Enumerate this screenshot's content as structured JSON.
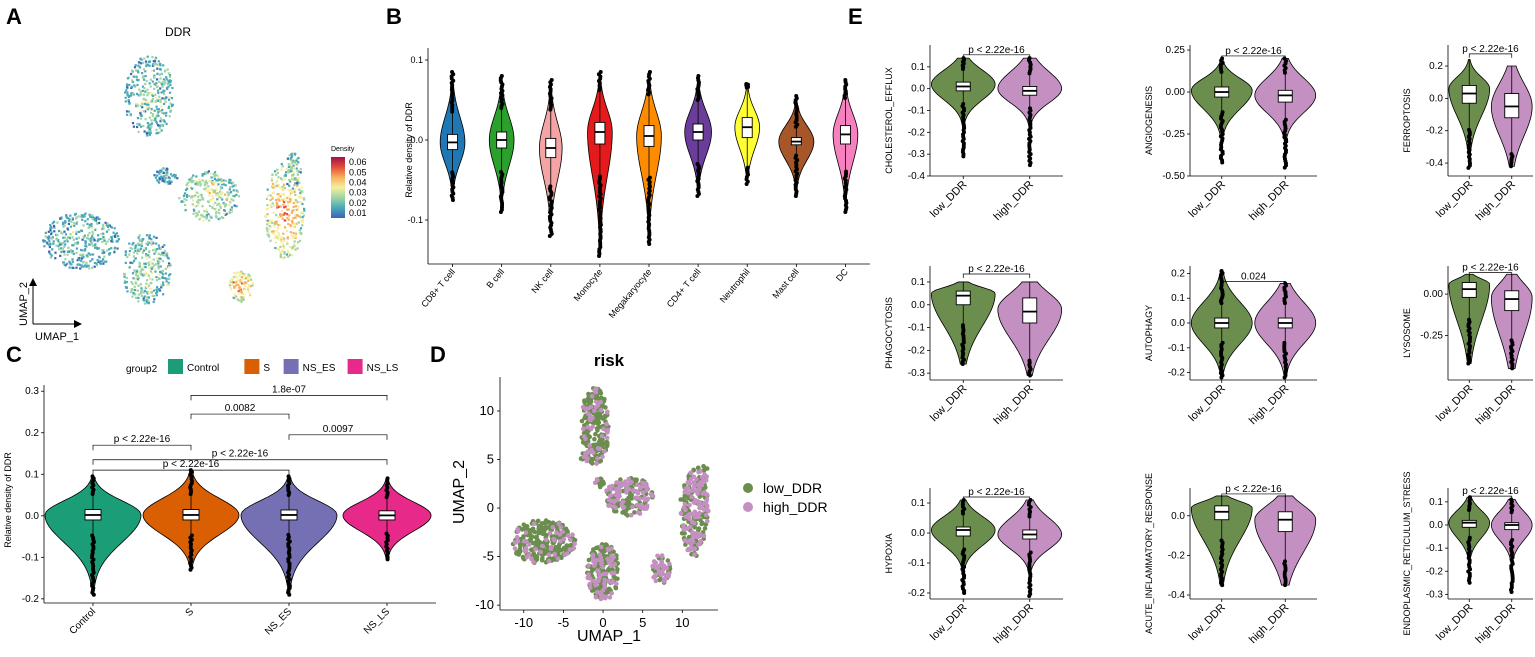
{
  "figure": {
    "panels": [
      {
        "letter": "A"
      },
      {
        "letter": "B"
      },
      {
        "letter": "C"
      },
      {
        "letter": "D"
      },
      {
        "letter": "E"
      }
    ]
  },
  "colors": {
    "density_scale": [
      "#3B63B4",
      "#4AA8B8",
      "#9FD4A4",
      "#F4EE9D",
      "#F8B05C",
      "#E44D3A",
      "#A0124B"
    ],
    "low_DDR": "#6B8E4E",
    "high_DDR": "#C490C2",
    "group_colors": [
      "#1B9E77",
      "#D95F02",
      "#7570B3",
      "#E7298A"
    ],
    "celltype_colors": [
      "#1F77B4",
      "#2CA02C",
      "#F4A4A4",
      "#E41A1C",
      "#FF8C00",
      "#6A3D9A",
      "#FFFF33",
      "#A65628",
      "#F781BF"
    ]
  },
  "chart_data": [
    {
      "id": "A",
      "type": "scatter",
      "title": "DDR",
      "xlabel": "UMAP_1",
      "ylabel": "UMAP_2",
      "legend_title": "Density",
      "legend_ticks": [
        "0.06",
        "0.05",
        "0.04",
        "0.03",
        "0.02",
        "0.01"
      ],
      "legend_range": [
        0.005,
        0.065
      ]
    },
    {
      "id": "B",
      "type": "violin",
      "ylabel": "Relative density of DDR",
      "ylim": [
        -0.155,
        0.115
      ],
      "yticks": [
        0.1,
        0.0,
        -0.1
      ],
      "ytick_labels": [
        "0.1",
        "0.0",
        "-0.1"
      ],
      "categories": [
        "CD8+ T cell",
        "B cell",
        "NK cell",
        "Monocyte",
        "Megakaryocyte",
        "CD4+ T cell",
        "Neutrophil",
        "Mast cell",
        "DC"
      ],
      "series": [
        {
          "name": "CD8+ T cell",
          "median": -0.003,
          "q1": -0.012,
          "q3": 0.007,
          "min": -0.075,
          "max": 0.085,
          "width": 0.6
        },
        {
          "name": "B cell",
          "median": 0.0,
          "q1": -0.01,
          "q3": 0.01,
          "min": -0.09,
          "max": 0.08,
          "width": 0.6
        },
        {
          "name": "NK cell",
          "median": -0.01,
          "q1": -0.022,
          "q3": 0.002,
          "min": -0.12,
          "max": 0.075,
          "width": 0.55
        },
        {
          "name": "Monocyte",
          "median": 0.01,
          "q1": -0.005,
          "q3": 0.022,
          "min": -0.145,
          "max": 0.085,
          "width": 0.6
        },
        {
          "name": "Megakaryocyte",
          "median": 0.005,
          "q1": -0.008,
          "q3": 0.018,
          "min": -0.13,
          "max": 0.085,
          "width": 0.6
        },
        {
          "name": "CD4+ T cell",
          "median": 0.01,
          "q1": 0.0,
          "q3": 0.02,
          "min": -0.07,
          "max": 0.08,
          "width": 0.65
        },
        {
          "name": "Neutrophil",
          "median": 0.016,
          "q1": 0.003,
          "q3": 0.028,
          "min": -0.055,
          "max": 0.07,
          "width": 0.6
        },
        {
          "name": "Mast cell",
          "median": -0.002,
          "q1": -0.006,
          "q3": 0.003,
          "min": -0.07,
          "max": 0.055,
          "width": 0.85
        },
        {
          "name": "DC",
          "median": 0.007,
          "q1": -0.005,
          "q3": 0.018,
          "min": -0.09,
          "max": 0.075,
          "width": 0.6
        }
      ]
    },
    {
      "id": "C",
      "type": "violin",
      "ylabel": "Relative density of DDR",
      "legend_title": "group2",
      "ylim": [
        -0.21,
        0.315
      ],
      "yticks": [
        0.3,
        0.2,
        0.1,
        0.0,
        -0.1,
        -0.2
      ],
      "ytick_labels": [
        "0.3",
        "0.2",
        "0.1",
        "0.0",
        "-0.1",
        "-0.2"
      ],
      "categories": [
        "Control",
        "S",
        "NS_ES",
        "NS_LS"
      ],
      "series": [
        {
          "name": "Control",
          "median": 0.002,
          "q1": -0.01,
          "q3": 0.015,
          "min": -0.19,
          "max": 0.095,
          "width": 0.98
        },
        {
          "name": "S",
          "median": 0.002,
          "q1": -0.01,
          "q3": 0.015,
          "min": -0.13,
          "max": 0.11,
          "width": 0.98
        },
        {
          "name": "NS_ES",
          "median": 0.002,
          "q1": -0.01,
          "q3": 0.014,
          "min": -0.19,
          "max": 0.095,
          "width": 0.98
        },
        {
          "name": "NS_LS",
          "median": 0.001,
          "q1": -0.01,
          "q3": 0.012,
          "min": -0.105,
          "max": 0.09,
          "width": 0.9
        }
      ],
      "comparisons": [
        {
          "from": "S",
          "to": "NS_LS",
          "y": 0.29,
          "label": "1.8e-07"
        },
        {
          "from": "S",
          "to": "NS_ES",
          "y": 0.245,
          "label": "0.0082"
        },
        {
          "from": "NS_ES",
          "to": "NS_LS",
          "y": 0.195,
          "label": "0.0097"
        },
        {
          "from": "Control",
          "to": "S",
          "y": 0.17,
          "label": "p < 2.22e-16"
        },
        {
          "from": "Control",
          "to": "NS_LS",
          "y": 0.135,
          "label": "p < 2.22e-16"
        },
        {
          "from": "Control",
          "to": "NS_ES",
          "y": 0.11,
          "label": "p < 2.22e-16"
        }
      ]
    },
    {
      "id": "D",
      "type": "scatter",
      "title": "risk",
      "xlabel": "UMAP_1",
      "ylabel": "UMAP_2",
      "xlim": [
        -13,
        14.5
      ],
      "ylim": [
        -10.5,
        13.5
      ],
      "xticks": [
        -10,
        -5,
        0,
        5,
        10
      ],
      "xtick_labels": [
        "-10",
        "-5",
        "0",
        "5",
        "10"
      ],
      "yticks": [
        10,
        5,
        0,
        -5,
        -10
      ],
      "ytick_labels": [
        "10",
        "5",
        "0",
        "-5",
        "-10"
      ],
      "legend": [
        "low_DDR",
        "high_DDR"
      ]
    },
    {
      "id": "E",
      "type": "violin",
      "categories": [
        "low_DDR",
        "high_DDR"
      ],
      "subplots": [
        {
          "name": "CHOLESTEROL_EFFLUX",
          "ylim": [
            -0.4,
            0.2
          ],
          "yticks": [
            0.1,
            0.0,
            -0.1,
            -0.2,
            -0.3,
            -0.4
          ],
          "ytick_labels": [
            "0.1",
            "0.0",
            "-0.1",
            "-0.2",
            "-0.3",
            "-0.4"
          ],
          "p": "p < 2.22e-16",
          "p_y": 0.155,
          "series": [
            {
              "median": 0.01,
              "q1": -0.01,
              "q3": 0.03,
              "min": -0.31,
              "max": 0.14,
              "dens": 0.02,
              "upper": 0.12,
              "lower": -0.09
            },
            {
              "median": -0.01,
              "q1": -0.03,
              "q3": 0.01,
              "min": -0.35,
              "max": 0.14,
              "dens": 0.0,
              "upper": 0.12,
              "lower": -0.1
            }
          ]
        },
        {
          "name": "ANGIOGENESIS",
          "ylim": [
            -0.5,
            0.28
          ],
          "yticks": [
            0.25,
            0.0,
            -0.25,
            -0.5
          ],
          "ytick_labels": [
            "0.25",
            "0.00",
            "-0.25",
            "-0.50"
          ],
          "p": "p < 2.22e-16",
          "p_y": 0.215,
          "series": [
            {
              "median": 0.0,
              "q1": -0.03,
              "q3": 0.03,
              "min": -0.42,
              "max": 0.2,
              "dens": 0.01,
              "upper": 0.12,
              "lower": -0.16
            },
            {
              "median": -0.02,
              "q1": -0.06,
              "q3": 0.01,
              "min": -0.45,
              "max": 0.2,
              "dens": -0.02,
              "upper": 0.14,
              "lower": -0.18
            }
          ]
        },
        {
          "name": "FERROPTOSIS",
          "ylim": [
            -0.48,
            0.33
          ],
          "yticks": [
            0.2,
            0.0,
            -0.2,
            -0.4
          ],
          "ytick_labels": [
            "0.2",
            "0.0",
            "-0.2",
            "-0.4"
          ],
          "p": "p < 2.22e-16",
          "p_y": 0.275,
          "series": [
            {
              "median": 0.03,
              "q1": -0.03,
              "q3": 0.08,
              "min": -0.43,
              "max": 0.24,
              "dens": 0.06,
              "upper": 0.17,
              "lower": -0.2
            },
            {
              "median": -0.05,
              "q1": -0.12,
              "q3": 0.03,
              "min": -0.42,
              "max": 0.2,
              "dens": -0.05,
              "upper": 0.17,
              "lower": -0.33
            }
          ]
        },
        {
          "name": "PHAGOCYTOSIS",
          "ylim": [
            -0.33,
            0.17
          ],
          "yticks": [
            0.1,
            0.0,
            -0.1,
            -0.2,
            -0.3
          ],
          "ytick_labels": [
            "0.1",
            "0.0",
            "-0.1",
            "-0.2",
            "-0.3"
          ],
          "p": "p < 2.22e-16",
          "p_y": 0.135,
          "series": [
            {
              "median": 0.04,
              "q1": 0.0,
              "q3": 0.06,
              "min": -0.26,
              "max": 0.1,
              "dens": 0.05,
              "upper": 0.09,
              "lower": -0.17
            },
            {
              "median": -0.03,
              "q1": -0.08,
              "q3": 0.03,
              "min": -0.31,
              "max": 0.1,
              "dens": -0.02,
              "upper": 0.09,
              "lower": -0.22
            }
          ]
        },
        {
          "name": "AUTOPHAGY",
          "ylim": [
            -0.23,
            0.23
          ],
          "yticks": [
            0.2,
            0.1,
            0.0,
            -0.1,
            -0.2
          ],
          "ytick_labels": [
            "0.2",
            "0.1",
            "0.0",
            "-0.1",
            "-0.2"
          ],
          "p": "0.024",
          "p_y": 0.168,
          "series": [
            {
              "median": 0.0,
              "q1": -0.02,
              "q3": 0.02,
              "min": -0.22,
              "max": 0.21,
              "dens": 0.0,
              "upper": 0.13,
              "lower": -0.13
            },
            {
              "median": 0.0,
              "q1": -0.02,
              "q3": 0.02,
              "min": -0.22,
              "max": 0.16,
              "dens": 0.0,
              "upper": 0.13,
              "lower": -0.13
            }
          ]
        },
        {
          "name": "LYSOSOME",
          "ylim": [
            -0.52,
            0.17
          ],
          "yticks": [
            0.0,
            -0.25
          ],
          "ytick_labels": [
            "0.00",
            "-0.25"
          ],
          "p": "p < 2.22e-16",
          "p_y": 0.13,
          "series": [
            {
              "median": 0.03,
              "q1": -0.02,
              "q3": 0.07,
              "min": -0.42,
              "max": 0.12,
              "dens": 0.06,
              "upper": 0.11,
              "lower": -0.28
            },
            {
              "median": -0.03,
              "q1": -0.1,
              "q3": 0.02,
              "min": -0.45,
              "max": 0.12,
              "dens": -0.02,
              "upper": 0.11,
              "lower": -0.37
            }
          ]
        },
        {
          "name": "HYPOXIA",
          "ylim": [
            -0.22,
            0.15
          ],
          "yticks": [
            0.1,
            0.0,
            -0.1,
            -0.2
          ],
          "ytick_labels": [
            "0.1",
            "0.0",
            "-0.1",
            "-0.2"
          ],
          "p": "p < 2.22e-16",
          "p_y": 0.12,
          "series": [
            {
              "median": 0.01,
              "q1": -0.01,
              "q3": 0.02,
              "min": -0.2,
              "max": 0.11,
              "dens": 0.01,
              "upper": 0.08,
              "lower": -0.07
            },
            {
              "median": -0.005,
              "q1": -0.02,
              "q3": 0.01,
              "min": -0.21,
              "max": 0.11,
              "dens": -0.005,
              "upper": 0.08,
              "lower": -0.08
            }
          ]
        },
        {
          "name": "ACUTE_INFLAMMATORY_RESPONSE",
          "ylim": [
            -0.42,
            0.14
          ],
          "yticks": [
            0.0,
            -0.2,
            -0.4
          ],
          "ytick_labels": [
            "0.0",
            "-0.2",
            "-0.4"
          ],
          "p": "p < 2.22e-16",
          "p_y": 0.11,
          "series": [
            {
              "median": 0.02,
              "q1": -0.02,
              "q3": 0.05,
              "min": -0.35,
              "max": 0.1,
              "dens": 0.04,
              "upper": 0.09,
              "lower": -0.21
            },
            {
              "median": -0.02,
              "q1": -0.08,
              "q3": 0.02,
              "min": -0.35,
              "max": 0.1,
              "dens": -0.02,
              "upper": 0.09,
              "lower": -0.27
            }
          ]
        },
        {
          "name": "ENDOPLASMIC_RETICULUM_STRESS",
          "ylim": [
            -0.32,
            0.16
          ],
          "yticks": [
            0.1,
            0.0,
            -0.1,
            -0.2,
            -0.3
          ],
          "ytick_labels": [
            "0.1",
            "0.0",
            "-0.1",
            "-0.2",
            "-0.3"
          ],
          "p": "p < 2.22e-16",
          "p_y": 0.125,
          "series": [
            {
              "median": 0.01,
              "q1": -0.01,
              "q3": 0.02,
              "min": -0.25,
              "max": 0.12,
              "dens": 0.01,
              "upper": 0.09,
              "lower": -0.09
            },
            {
              "median": 0.0,
              "q1": -0.02,
              "q3": 0.01,
              "min": -0.29,
              "max": 0.11,
              "dens": 0.0,
              "upper": 0.09,
              "lower": -0.1
            }
          ]
        }
      ]
    }
  ]
}
